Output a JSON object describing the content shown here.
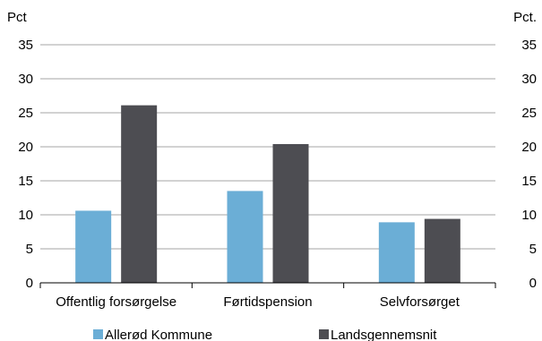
{
  "chart_data": {
    "type": "bar",
    "title": "",
    "xlabel": "",
    "ylabel_left": "Pct",
    "ylabel_right": "Pct.",
    "ylim": [
      0,
      35
    ],
    "yticks": [
      "0",
      "5",
      "10",
      "15",
      "20",
      "25",
      "30",
      "35"
    ],
    "grid": true,
    "legend_position": "bottom",
    "categories": [
      "Offentlig forsørgelse",
      "Førtidspension",
      "Selvforsørget"
    ],
    "series": [
      {
        "name": "Allerød Kommune",
        "color": "#6BAED6",
        "values": [
          10.6,
          13.5,
          8.9
        ]
      },
      {
        "name": "Landsgennemsnit",
        "color": "#4D4D52",
        "values": [
          26.1,
          20.4,
          9.4
        ]
      }
    ]
  }
}
